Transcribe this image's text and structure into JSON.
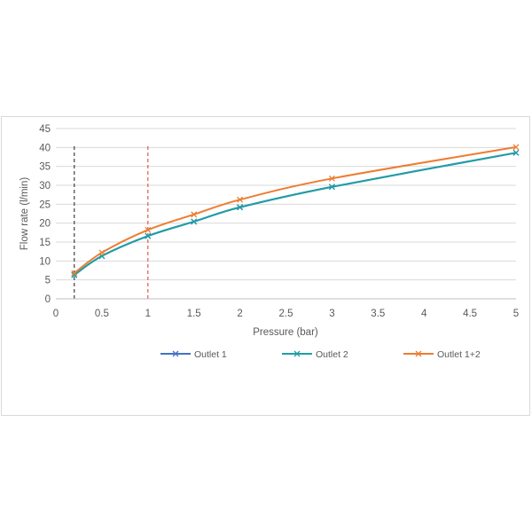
{
  "chart_data": {
    "type": "line",
    "title": "",
    "xlabel": "Pressure (bar)",
    "ylabel": "Flow rate (l/min)",
    "xlim": [
      0,
      5
    ],
    "ylim": [
      0,
      45
    ],
    "x_ticks": [
      "0",
      "0.5",
      "1",
      "1.5",
      "2",
      "2.5",
      "3",
      "3.5",
      "4",
      "4.5",
      "5"
    ],
    "y_ticks": [
      "0",
      "5",
      "10",
      "15",
      "20",
      "25",
      "30",
      "35",
      "40",
      "45"
    ],
    "grid": "horizontal",
    "legend_position": "bottom",
    "x": [
      0.2,
      0.5,
      1,
      1.5,
      2,
      3,
      5
    ],
    "series": [
      {
        "name": "Outlet 1",
        "color": "#4472c4",
        "marker": "x",
        "values": [
          6.3,
          11.3,
          16.6,
          20.4,
          24.2,
          29.6,
          38.6
        ]
      },
      {
        "name": "Outlet 2",
        "color": "#1f9ea5",
        "marker": "x",
        "values": [
          6.3,
          11.3,
          16.6,
          20.4,
          24.2,
          29.6,
          38.6
        ]
      },
      {
        "name": "Outlet 1+2",
        "color": "#ed7d31",
        "marker": "x",
        "values": [
          6.8,
          12.2,
          18.2,
          22.3,
          26.2,
          31.8,
          40.1
        ]
      }
    ],
    "reference_lines": [
      {
        "x": 0.2,
        "color": "#404040",
        "style": "dashed"
      },
      {
        "x": 1,
        "color": "#e05a4f",
        "style": "dashed"
      }
    ]
  }
}
